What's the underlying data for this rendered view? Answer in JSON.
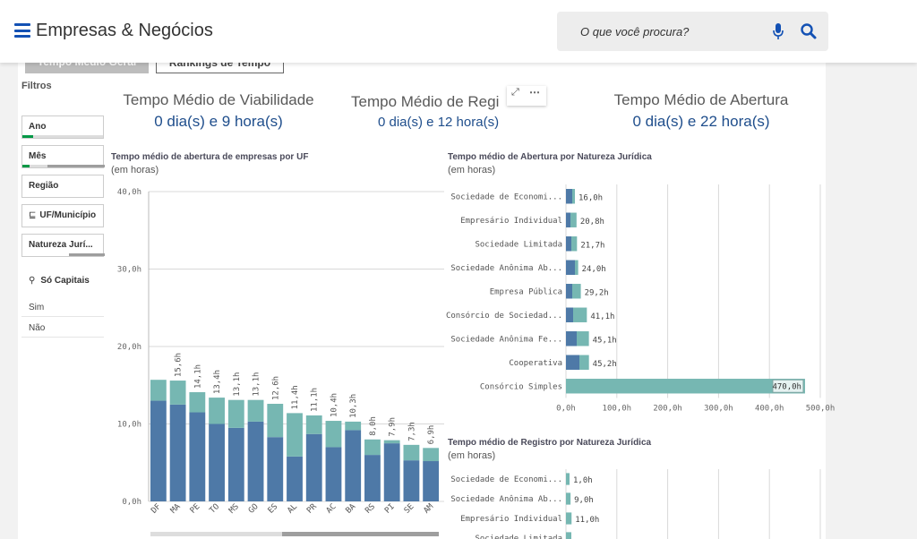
{
  "header": {
    "app_title": "Empresas & Negócios",
    "search_placeholder": "O que você procura?",
    "brand_color": "#1351b4"
  },
  "tabs": [
    "Tempo Médio Geral",
    "Rankings de Tempo"
  ],
  "filters": {
    "title": "Filtros",
    "items": [
      "Ano",
      "Mês",
      "Região",
      "UF/Município",
      "Natureza Jurí..."
    ],
    "so_capitais": {
      "label": "Só Capitais",
      "options": [
        "Sim",
        "Não"
      ]
    }
  },
  "kpis": [
    {
      "title": "Tempo Médio de Viabilidade",
      "value": "0 dia(s) e 9 hora(s)"
    },
    {
      "title": "Tempo Médio de Regi",
      "value": "0 dia(s) e 12 hora(s)"
    },
    {
      "title": "Tempo Médio de Abertura",
      "value": "0 dia(s) e 22 hora(s)"
    }
  ],
  "charts": {
    "uf": {
      "title": "Tempo médio de abertura de empresas por UF",
      "subtitle": "(em horas)"
    },
    "natureza_abertura": {
      "title": "Tempo médio de Abertura por Natureza Jurídica",
      "subtitle": "(em horas)"
    },
    "natureza_registro": {
      "title": "Tempo médio de Registro por Natureza Jurídica",
      "subtitle": "(em horas)"
    }
  },
  "chart_data": [
    {
      "type": "bar",
      "stacked": true,
      "categories": [
        "DF",
        "MA",
        "PE",
        "TO",
        "MS",
        "GO",
        "ES",
        "AL",
        "PR",
        "AC",
        "BA",
        "RS",
        "PI",
        "SE",
        "AM"
      ],
      "totals": [
        null,
        15.6,
        14.1,
        13.4,
        13.1,
        13.1,
        12.6,
        11.4,
        11.1,
        10.4,
        10.3,
        8.0,
        7.9,
        7.3,
        6.9
      ],
      "total_labels": [
        "",
        "15,6h",
        "14,1h",
        "13,4h",
        "13,1h",
        "13,1h",
        "12,6h",
        "11,4h",
        "11,1h",
        "10,4h",
        "10,3h",
        "8,0h",
        "7,9h",
        "7,3h",
        "6,9h"
      ],
      "series": [
        {
          "color": "#4e79a7",
          "values": [
            13.0,
            12.5,
            11.5,
            10.0,
            9.5,
            10.3,
            8.3,
            5.8,
            8.7,
            7.0,
            9.2,
            6.0,
            7.5,
            5.3,
            5.2
          ]
        },
        {
          "color": "#76b7b2",
          "values": [
            2.7,
            3.1,
            2.6,
            3.4,
            3.6,
            2.8,
            4.3,
            5.6,
            2.4,
            3.4,
            1.1,
            2.0,
            0.4,
            2.0,
            1.7
          ]
        }
      ],
      "ylim": [
        0,
        40
      ],
      "yticks": [
        "0,0h",
        "10,0h",
        "20,0h",
        "30,0h",
        "40,0h"
      ],
      "grid": true
    },
    {
      "type": "bar",
      "orientation": "horizontal",
      "categories": [
        "Sociedade de Economi...",
        "Empresário Individual",
        "Sociedade Limitada",
        "Sociedade Anônima Ab...",
        "Empresa Pública",
        "Consórcio de Sociedad...",
        "Sociedade Anônima Fe...",
        "Cooperativa",
        "Consórcio Simples"
      ],
      "values": [
        16.0,
        20.8,
        21.7,
        24.0,
        29.2,
        41.1,
        45.1,
        45.2,
        470.0
      ],
      "value_labels": [
        "16,0h",
        "20,8h",
        "21,7h",
        "24,0h",
        "29,2h",
        "41,1h",
        "45,1h",
        "45,2h",
        "470,0h"
      ],
      "part_dark": [
        7,
        5,
        6,
        10,
        7,
        8,
        12,
        15,
        0
      ],
      "colors": {
        "dark": "#4e79a7",
        "light": "#76b7b2"
      },
      "xlim": [
        0,
        500
      ],
      "xticks": [
        "0,0h",
        "100,0h",
        "200,0h",
        "300,0h",
        "400,0h",
        "500,0h"
      ],
      "grid": true
    },
    {
      "type": "bar",
      "orientation": "horizontal",
      "categories": [
        "Sociedade de Economi...",
        "Sociedade Anônima Ab...",
        "Empresário Individual",
        "Sociedade Limitada"
      ],
      "values": [
        1.0,
        9.0,
        11.0,
        null
      ],
      "value_labels": [
        "1,0h",
        "9,0h",
        "11,0h",
        ""
      ],
      "color": "#76b7b2",
      "xlim": [
        0,
        500
      ],
      "grid": true
    }
  ]
}
